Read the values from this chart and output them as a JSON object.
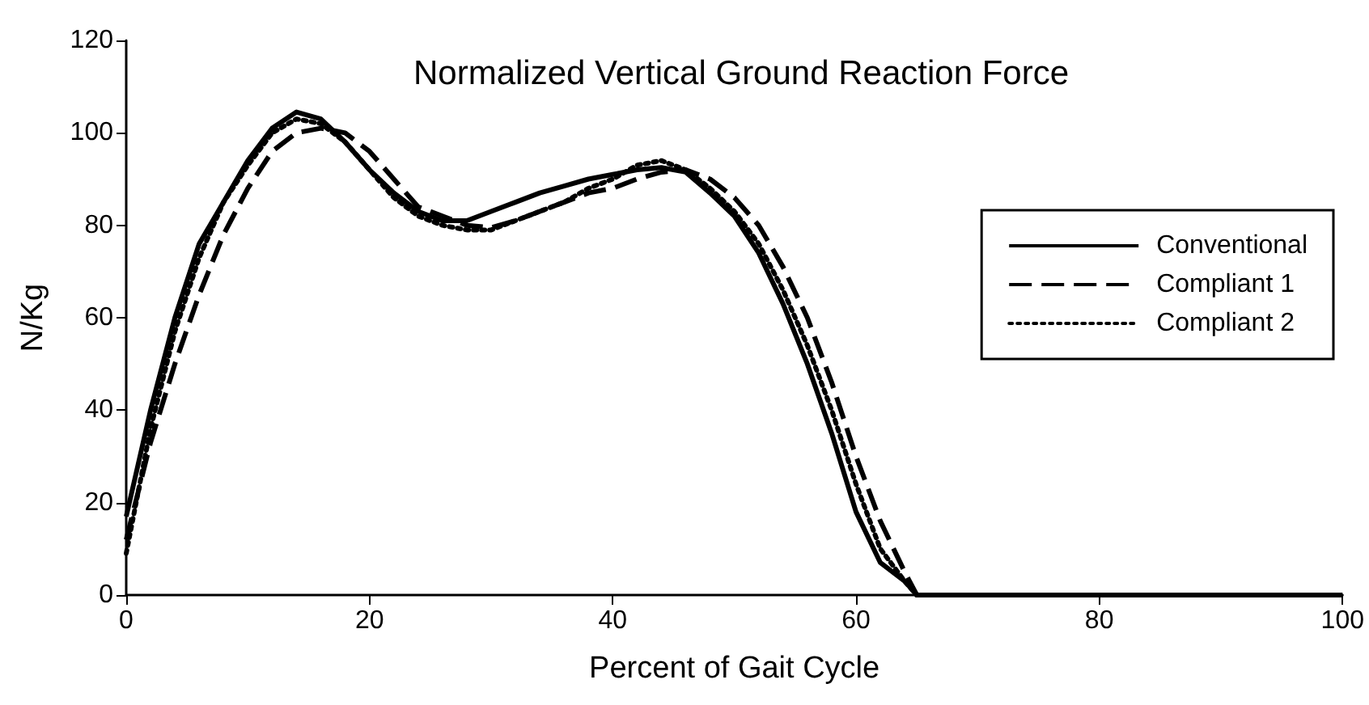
{
  "chart_data": {
    "type": "line",
    "title": "Normalized Vertical Ground Reaction Force",
    "xlabel": "Percent of Gait Cycle",
    "ylabel": "N/Kg",
    "x": [
      0,
      2,
      4,
      6,
      8,
      10,
      12,
      14,
      16,
      18,
      20,
      22,
      24,
      26,
      28,
      30,
      32,
      34,
      36,
      38,
      40,
      42,
      44,
      46,
      48,
      50,
      52,
      54,
      56,
      58,
      60,
      62,
      64,
      65,
      100
    ],
    "series": [
      {
        "name": "Conventional",
        "color": "#000000",
        "line_style": "solid",
        "values": [
          17,
          40,
          60,
          76,
          85,
          94,
          101,
          104.5,
          103,
          98,
          92,
          87,
          83,
          81,
          81,
          83,
          85,
          87,
          88.5,
          90,
          91,
          92,
          92.5,
          91.5,
          87,
          82,
          74,
          63,
          50,
          35,
          18,
          7,
          3,
          0,
          0
        ]
      },
      {
        "name": "Compliant 1",
        "color": "#000000",
        "line_style": "dashed",
        "values": [
          12,
          33,
          50,
          65,
          78,
          88,
          96,
          100,
          101,
          100,
          96,
          90,
          84,
          82,
          80,
          79.5,
          81,
          83,
          85,
          87,
          88,
          90,
          91.5,
          92,
          90,
          86,
          80,
          71,
          60,
          46,
          30,
          16,
          5,
          0,
          0
        ]
      },
      {
        "name": "Compliant 2",
        "color": "#000000",
        "line_style": "dotted",
        "values": [
          9,
          36,
          57,
          73,
          85,
          93,
          100,
          103,
          102,
          98,
          92,
          86,
          82,
          80,
          79,
          79,
          81,
          83,
          85,
          88,
          90,
          93,
          94,
          92,
          88,
          83,
          76,
          66,
          54,
          40,
          24,
          10,
          3,
          0,
          0
        ]
      }
    ],
    "xlim": [
      0,
      100
    ],
    "xticks": [
      0,
      20,
      40,
      60,
      80,
      100
    ],
    "ylim": [
      0,
      120
    ],
    "yticks": [
      0,
      20,
      40,
      60,
      80,
      100,
      120
    ],
    "grid": false,
    "legend": "right",
    "marker": "none"
  }
}
